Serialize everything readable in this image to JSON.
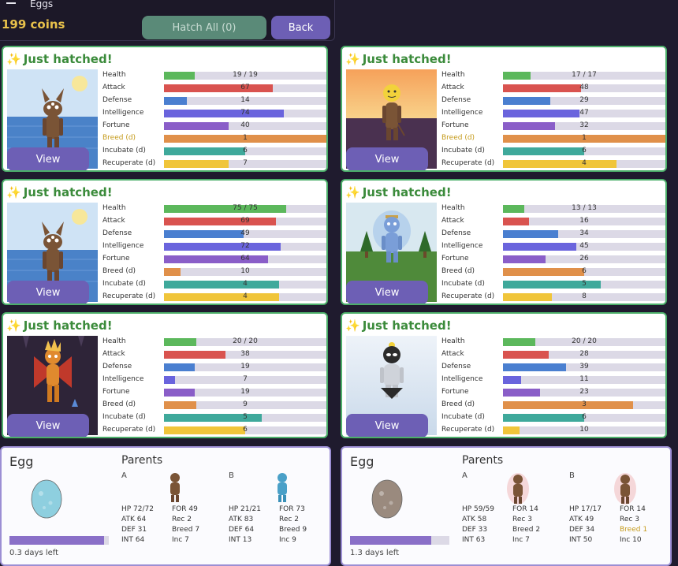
{
  "header": {
    "title": "Eggs",
    "coins": "199 coins",
    "hatch_all_label": "Hatch All (0)",
    "back_label": "Back"
  },
  "colors": {
    "health": "#5cb85c",
    "attack": "#d9534f",
    "defense": "#4a7fd0",
    "intelligence": "#6a64dd",
    "fortune": "#8a5ec8",
    "breed": "#e0904a",
    "incubate": "#3fa99b",
    "recuperate": "#f0c53a",
    "card_border": "#4caf6a",
    "button": "#6d5fb5"
  },
  "stat_labels": {
    "health": "Health",
    "attack": "Attack",
    "defense": "Defense",
    "intelligence": "Intelligence",
    "fortune": "Fortune",
    "breed": "Breed (d)",
    "incubate": "Incubate (d)",
    "recuperate": "Recuperate (d)"
  },
  "hatched_label": "Just hatched!",
  "view_label": "View",
  "creatures": [
    {
      "scene": "beach",
      "stats": {
        "health": {
          "text": "19 / 19",
          "fill": 0.19
        },
        "attack": {
          "text": "67",
          "fill": 0.67
        },
        "defense": {
          "text": "14",
          "fill": 0.14
        },
        "intelligence": {
          "text": "74",
          "fill": 0.74
        },
        "fortune": {
          "text": "40",
          "fill": 0.4
        },
        "breed": {
          "text": "1",
          "fill": 1.0
        },
        "incubate": {
          "text": "6",
          "fill": 0.5
        },
        "recuperate": {
          "text": "7",
          "fill": 0.4
        }
      },
      "breed_gold": true
    },
    {
      "scene": "sunset",
      "stats": {
        "health": {
          "text": "17 / 17",
          "fill": 0.17
        },
        "attack": {
          "text": "48",
          "fill": 0.48
        },
        "defense": {
          "text": "29",
          "fill": 0.29
        },
        "intelligence": {
          "text": "47",
          "fill": 0.47
        },
        "fortune": {
          "text": "32",
          "fill": 0.32
        },
        "breed": {
          "text": "1",
          "fill": 1.0
        },
        "incubate": {
          "text": "6",
          "fill": 0.5
        },
        "recuperate": {
          "text": "4",
          "fill": 0.7
        }
      },
      "breed_gold": true
    },
    {
      "scene": "beach",
      "stats": {
        "health": {
          "text": "75 / 75",
          "fill": 0.75
        },
        "attack": {
          "text": "69",
          "fill": 0.69
        },
        "defense": {
          "text": "49",
          "fill": 0.49
        },
        "intelligence": {
          "text": "72",
          "fill": 0.72
        },
        "fortune": {
          "text": "64",
          "fill": 0.64
        },
        "breed": {
          "text": "10",
          "fill": 0.1
        },
        "incubate": {
          "text": "4",
          "fill": 0.71
        },
        "recuperate": {
          "text": "4",
          "fill": 0.71
        }
      },
      "breed_gold": false
    },
    {
      "scene": "forest",
      "stats": {
        "health": {
          "text": "13 / 13",
          "fill": 0.13
        },
        "attack": {
          "text": "16",
          "fill": 0.16
        },
        "defense": {
          "text": "34",
          "fill": 0.34
        },
        "intelligence": {
          "text": "45",
          "fill": 0.45
        },
        "fortune": {
          "text": "26",
          "fill": 0.26
        },
        "breed": {
          "text": "6",
          "fill": 0.5
        },
        "incubate": {
          "text": "5",
          "fill": 0.6
        },
        "recuperate": {
          "text": "8",
          "fill": 0.3
        }
      },
      "breed_gold": false
    },
    {
      "scene": "cave",
      "stats": {
        "health": {
          "text": "20 / 20",
          "fill": 0.2
        },
        "attack": {
          "text": "38",
          "fill": 0.38
        },
        "defense": {
          "text": "19",
          "fill": 0.19
        },
        "intelligence": {
          "text": "7",
          "fill": 0.07
        },
        "fortune": {
          "text": "19",
          "fill": 0.19
        },
        "breed": {
          "text": "9",
          "fill": 0.2
        },
        "incubate": {
          "text": "5",
          "fill": 0.6
        },
        "recuperate": {
          "text": "6",
          "fill": 0.5
        }
      },
      "breed_gold": false
    },
    {
      "scene": "snow",
      "stats": {
        "health": {
          "text": "20 / 20",
          "fill": 0.2
        },
        "attack": {
          "text": "28",
          "fill": 0.28
        },
        "defense": {
          "text": "39",
          "fill": 0.39
        },
        "intelligence": {
          "text": "11",
          "fill": 0.11
        },
        "fortune": {
          "text": "23",
          "fill": 0.23
        },
        "breed": {
          "text": "3",
          "fill": 0.8
        },
        "incubate": {
          "text": "6",
          "fill": 0.5
        },
        "recuperate": {
          "text": "10",
          "fill": 0.1
        }
      },
      "breed_gold": false
    }
  ],
  "eggs": [
    {
      "title": "Egg",
      "egg_color": "#8ecfdf",
      "progress": 0.95,
      "time_left": "0.3 days left",
      "parents_title": "Parents",
      "parent_a": {
        "label": "A",
        "hp": "HP 72/72",
        "atk": "ATK 64",
        "def": "DEF 31",
        "int": "INT 64",
        "for": "FOR 49",
        "rec": "Rec 2",
        "breed": "Breed 7",
        "inc": "Inc 7",
        "breed_gold": false
      },
      "parent_b": {
        "label": "B",
        "hp": "HP 21/21",
        "atk": "ATK 83",
        "def": "DEF 64",
        "int": "INT 13",
        "for": "FOR 73",
        "rec": "Rec 2",
        "breed": "Breed 9",
        "inc": "Inc 9",
        "breed_gold": false
      }
    },
    {
      "title": "Egg",
      "egg_color": "#9a8a7e",
      "progress": 0.82,
      "time_left": "1.3 days left",
      "parents_title": "Parents",
      "parent_a": {
        "label": "A",
        "hp": "HP 59/59",
        "atk": "ATK 58",
        "def": "DEF 33",
        "int": "INT 63",
        "for": "FOR 14",
        "rec": "Rec 3",
        "breed": "Breed 2",
        "inc": "Inc 7",
        "breed_gold": false
      },
      "parent_b": {
        "label": "B",
        "hp": "HP 17/17",
        "atk": "ATK 49",
        "def": "DEF 34",
        "int": "INT 50",
        "for": "FOR 14",
        "rec": "Rec 3",
        "breed": "Breed 1",
        "inc": "Inc 10",
        "breed_gold": true
      }
    }
  ]
}
